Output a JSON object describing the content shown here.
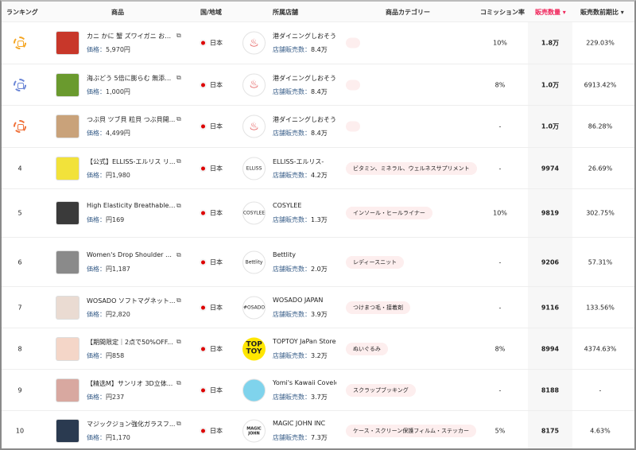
{
  "header": {
    "rank": "ランキング",
    "product": "商品",
    "country": "国/地域",
    "shop": "所属店舗",
    "category": "商品カテゴリー",
    "commission": "コミッション率",
    "sales": "販売数量 ▾",
    "growth": "販売数前期比 ▾"
  },
  "accent": "#f0245a",
  "labels": {
    "price": "価格：",
    "shop_sales": "店舗販売数：",
    "expand": "⧉"
  },
  "rows": [
    {
      "rank": "1",
      "medal": "#f5a623",
      "title": "カニ かに 蟹 ズワイガニ お刺...",
      "price": "5,970円",
      "country": "日本",
      "shop": "港ダイニングしおそう",
      "shop_sales": "8.4万",
      "logo": "",
      "category": "",
      "commission": "10%",
      "sales": "1.8万",
      "growth": "229.03%",
      "img": "#c8372a"
    },
    {
      "rank": "2",
      "medal": "#6b86d6",
      "title": "海ぶどう 5倍に膨らむ 無添加...",
      "price": "1,000円",
      "country": "日本",
      "shop": "港ダイニングしおそう",
      "shop_sales": "8.4万",
      "logo": "",
      "category": "",
      "commission": "8%",
      "sales": "1.0万",
      "growth": "6913.42%",
      "img": "#6a9a2e"
    },
    {
      "rank": "3",
      "medal": "#f07038",
      "title": "つぶ貝 ツブ貝 粒貝 つぶ貝開...",
      "price": "4,499円",
      "country": "日本",
      "shop": "港ダイニングしおそう",
      "shop_sales": "8.4万",
      "logo": "",
      "category": "",
      "commission": "-",
      "sales": "1.0万",
      "growth": "86.28%",
      "img": "#c9a27a"
    },
    {
      "rank": "4",
      "title": "【公式】ELLISS-エルリス リ...",
      "price": "円1,980",
      "country": "日本",
      "shop": "ELLISS-エルリス-",
      "shop_sales": "4.2万",
      "logo": "ELLISS",
      "category": "ビタミン、ミネラル、ウェルネスサプリメント",
      "commission": "-",
      "sales": "9974",
      "growth": "26.69%",
      "img": "#f2e23a"
    },
    {
      "rank": "5",
      "title": "High Elasticity Breathable S...",
      "price": "円169",
      "country": "日本",
      "shop": "COSYLEE",
      "shop_sales": "1.3万",
      "logo": "COSYLEE",
      "category": "インソール・ヒールライナー",
      "commission": "10%",
      "sales": "9819",
      "growth": "302.75%",
      "img": "#3a3a3a"
    },
    {
      "rank": "6",
      "title": "Women's Drop Shoulder Spli...",
      "price": "円1,187",
      "country": "日本",
      "shop": "Bettlity",
      "shop_sales": "2.0万",
      "logo": "Bettlity",
      "category": "レディースニット",
      "commission": "-",
      "sales": "9206",
      "growth": "57.31%",
      "img": "#8a8a8a"
    },
    {
      "rank": "7",
      "title": "WOSADO ソフトマグネット...",
      "price": "円2,820",
      "country": "日本",
      "shop": "WOSADO JAPAN",
      "shop_sales": "3.9万",
      "logo": "#OSADO",
      "category": "つけまつ毛・接着剤",
      "commission": "-",
      "sales": "9116",
      "growth": "133.56%",
      "img": "#eadbd2"
    },
    {
      "rank": "8",
      "title": "【期間限定｜2点で50%OFF...",
      "price": "円858",
      "country": "日本",
      "shop": "TOPTOY JaPan Store",
      "shop_sales": "3.2万",
      "logo": "TOP TOY",
      "category": "ぬいぐるみ",
      "commission": "8%",
      "sales": "8994",
      "growth": "4374.63%",
      "img": "#f4d6c8"
    },
    {
      "rank": "9",
      "title": "【精选M】サンリオ 3D立体...",
      "price": "円237",
      "country": "日本",
      "shop": "Yomi's Kawaii Covelet",
      "shop_sales": "3.7万",
      "logo": "",
      "category": "スクラップブッキング",
      "commission": "-",
      "sales": "8188",
      "growth": "-",
      "img": "#d8a8a0"
    },
    {
      "rank": "10",
      "title": "マジックジョン強化ガラスフ...",
      "price": "円1,170",
      "country": "日本",
      "shop": "MAGIC JOHN INC",
      "shop_sales": "7.3万",
      "logo": "MAGIC JOHN",
      "category": "ケース・スクリーン保護フィルム・ステッカー",
      "commission": "5%",
      "sales": "8175",
      "growth": "4.63%",
      "img": "#2a3a50"
    }
  ]
}
